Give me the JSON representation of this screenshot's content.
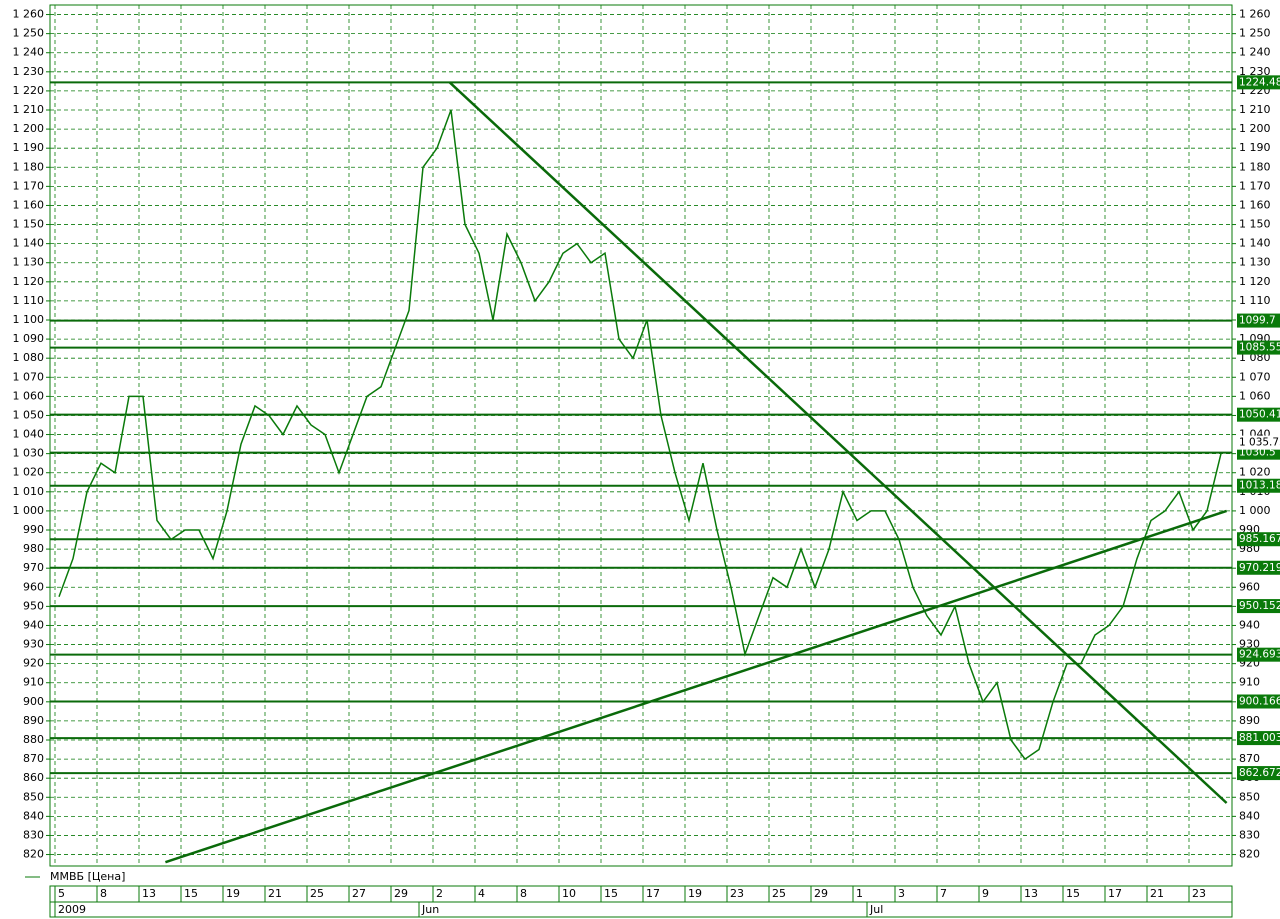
{
  "chart_data": {
    "type": "line",
    "legend": "ММВБ [Цена]",
    "categories": [
      "5",
      null,
      null,
      "8",
      null,
      null,
      "13",
      null,
      null,
      "15",
      null,
      null,
      "19",
      null,
      null,
      "21",
      null,
      null,
      "25",
      null,
      null,
      "27",
      null,
      null,
      "29",
      null,
      null,
      "2",
      null,
      null,
      "4",
      null,
      null,
      "8",
      null,
      null,
      "10",
      null,
      null,
      "15",
      null,
      null,
      "17",
      null,
      null,
      "19",
      null,
      null,
      "23",
      null,
      null,
      "25",
      null,
      null,
      "29",
      null,
      null,
      "1",
      null,
      null,
      "3",
      null,
      null,
      "7",
      null,
      null,
      "9",
      null,
      null,
      "13",
      null,
      null,
      "15",
      null,
      null,
      "17",
      null,
      null,
      "21",
      null,
      null,
      "23",
      null,
      null
    ],
    "periods": [
      "2009",
      null,
      null,
      null,
      null,
      null,
      null,
      null,
      null,
      null,
      null,
      null,
      null,
      null,
      null,
      null,
      null,
      null,
      null,
      null,
      null,
      null,
      null,
      null,
      null,
      null,
      "Jun",
      null,
      null,
      null,
      null,
      null,
      null,
      null,
      null,
      null,
      null,
      null,
      null,
      null,
      null,
      null,
      null,
      null,
      null,
      null,
      null,
      null,
      null,
      null,
      null,
      null,
      null,
      null,
      null,
      null,
      null,
      null,
      "Jul",
      null,
      null,
      null,
      null,
      null,
      null,
      null,
      null,
      null,
      null,
      null,
      null,
      null,
      null,
      null,
      null,
      null,
      null,
      null,
      null,
      null,
      null,
      null,
      null,
      null
    ],
    "series": [
      {
        "name": "ММВБ",
        "color": "#0a7a0a",
        "values": [
          955,
          975,
          1010,
          1025,
          1020,
          1060,
          1060,
          995,
          985,
          990,
          990,
          975,
          1000,
          1035,
          1055,
          1050,
          1040,
          1055,
          1045,
          1040,
          1020,
          1040,
          1060,
          1065,
          1085,
          1105,
          1180,
          1190,
          1210,
          1150,
          1135,
          1100,
          1145,
          1130,
          1110,
          1120,
          1135,
          1140,
          1130,
          1135,
          1090,
          1080,
          1100,
          1050,
          1020,
          995,
          1025,
          990,
          960,
          925,
          945,
          965,
          960,
          980,
          960,
          980,
          1010,
          995,
          1000,
          1000,
          985,
          960,
          945,
          935,
          950,
          920,
          900,
          910,
          880,
          870,
          875,
          900,
          920,
          920,
          935,
          940,
          950,
          975,
          995,
          1000,
          1010,
          990,
          1000,
          1030
        ]
      }
    ],
    "ylim": [
      814,
      1265
    ],
    "yticks": [
      820,
      830,
      840,
      850,
      860,
      870,
      880,
      890,
      900,
      910,
      920,
      930,
      940,
      950,
      960,
      970,
      980,
      990,
      {
        "value": 1000,
        "label": "1 000"
      },
      {
        "value": 1010,
        "label": "1 010"
      },
      {
        "value": 1020,
        "label": "1 020"
      },
      {
        "value": 1030,
        "label": "1 030"
      },
      {
        "value": 1040,
        "label": "1 040"
      },
      {
        "value": 1050,
        "label": "1 050"
      },
      {
        "value": 1060,
        "label": "1 060"
      },
      {
        "value": 1070,
        "label": "1 070"
      },
      {
        "value": 1080,
        "label": "1 080"
      },
      {
        "value": 1090,
        "label": "1 090"
      },
      {
        "value": 1100,
        "label": "1 100"
      },
      {
        "value": 1110,
        "label": "1 110"
      },
      {
        "value": 1120,
        "label": "1 120"
      },
      {
        "value": 1130,
        "label": "1 130"
      },
      {
        "value": 1140,
        "label": "1 140"
      },
      {
        "value": 1150,
        "label": "1 150"
      },
      {
        "value": 1160,
        "label": "1 160"
      },
      {
        "value": 1170,
        "label": "1 170"
      },
      {
        "value": 1180,
        "label": "1 180"
      },
      {
        "value": 1190,
        "label": "1 190"
      },
      {
        "value": 1200,
        "label": "1 200"
      },
      {
        "value": 1210,
        "label": "1 210"
      },
      {
        "value": 1220,
        "label": "1 220"
      },
      {
        "value": 1230,
        "label": "1 230"
      },
      {
        "value": 1240,
        "label": "1 240"
      },
      {
        "value": 1250,
        "label": "1 250"
      },
      {
        "value": 1260,
        "label": "1 260"
      }
    ],
    "levels": [
      1224.48,
      1099.7,
      1085.55,
      1050.41,
      1030.5,
      1013.18,
      985.167,
      970.219,
      950.152,
      924.693,
      900.166,
      881.003,
      862.672
    ],
    "last_price": {
      "value": 1035.75,
      "label": "1 035.75"
    },
    "trendlines": [
      {
        "x": [
          7.6,
          83.4
        ],
        "y": [
          816,
          1000
        ]
      },
      {
        "x": [
          27.9,
          83.4
        ],
        "y": [
          1224.5,
          847
        ]
      }
    ],
    "grid": true
  }
}
